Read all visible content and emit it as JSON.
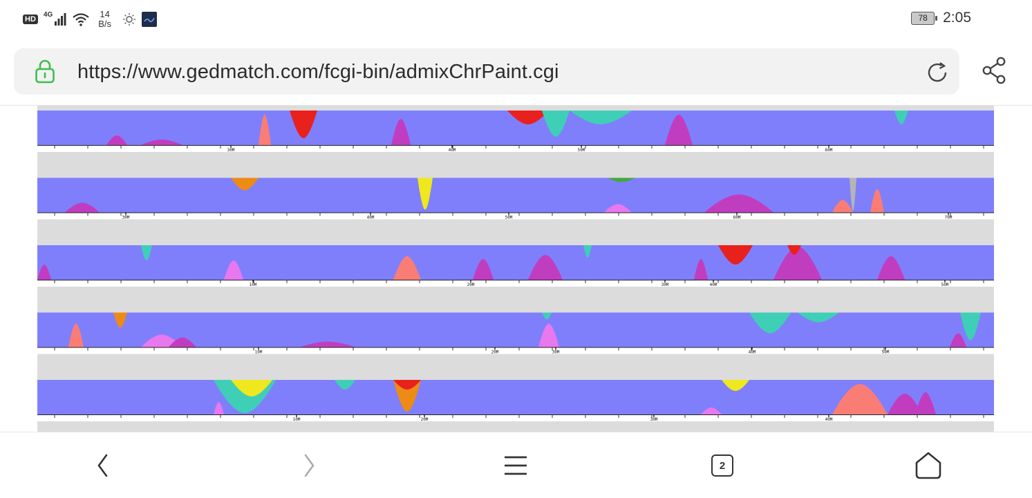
{
  "status_bar": {
    "hd": "HD",
    "network": "4G",
    "speed_value": "14",
    "speed_unit": "B/s",
    "battery": "78",
    "time": "2:05"
  },
  "browser": {
    "url": "https://www.gedmatch.com/fcgi-bin/admixChrPaint.cgi",
    "tab_count": "2"
  },
  "colors": {
    "base_band": "#7f7ffc",
    "gap_band": "#dcdcdc",
    "magenta": "#c13dc0",
    "salmon": "#fa7d75",
    "pink": "#e778ee",
    "teal": "#3fcfb6",
    "red": "#e8211c",
    "orange": "#ee8a16",
    "yellow": "#efe81e",
    "green": "#42a839",
    "grey": "#b5b5b5"
  },
  "chart_data": [
    {
      "type": "area",
      "axis_tick_labels": [
        "30M",
        "40M",
        "50M",
        "60M"
      ]
    },
    {
      "type": "area",
      "axis_tick_labels": [
        "30M",
        "40M",
        "50M",
        "60M",
        "70M"
      ]
    },
    {
      "type": "area",
      "axis_tick_labels": [
        "10M",
        "20M",
        "30M",
        "40M",
        "50M",
        "60M"
      ]
    },
    {
      "type": "area",
      "axis_tick_labels": [
        "10M",
        "20M",
        "30M",
        "40M",
        "50M"
      ]
    },
    {
      "type": "area",
      "axis_tick_labels": [
        "10M",
        "20M",
        "30M",
        "40M"
      ]
    }
  ]
}
